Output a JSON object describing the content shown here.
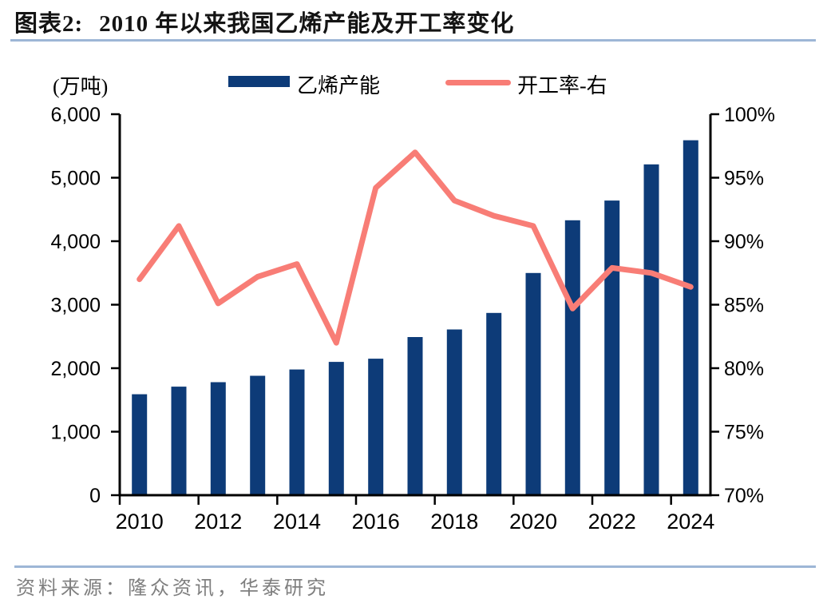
{
  "header": {
    "label": "图表2:",
    "title": "2010 年以来我国乙烯产能及开工率变化"
  },
  "footer": {
    "source": "资料来源：隆众资讯，华泰研究"
  },
  "colors": {
    "bar": "#0d3b78",
    "line": "#f87d76",
    "rule": "#9db6d6",
    "axis": "#000000",
    "source_text": "#7f7f7f",
    "title_text": "#141414"
  },
  "chart_data": {
    "type": "combo",
    "title": "2010 年以来我国乙烯产能及开工率变化",
    "categories": [
      2010,
      2011,
      2012,
      2013,
      2014,
      2015,
      2016,
      2017,
      2018,
      2019,
      2020,
      2021,
      2022,
      2023,
      2024
    ],
    "series": [
      {
        "name": "乙烯产能",
        "type": "bar",
        "axis": "left",
        "values": [
          1590,
          1710,
          1780,
          1880,
          1980,
          2100,
          2150,
          2490,
          2610,
          2870,
          3500,
          4330,
          4640,
          5210,
          5590
        ]
      },
      {
        "name": "开工率-右",
        "type": "line",
        "axis": "right",
        "values": [
          87.0,
          91.2,
          85.1,
          87.2,
          88.2,
          82.0,
          94.2,
          97.0,
          93.2,
          92.0,
          91.2,
          84.7,
          87.9,
          87.5,
          86.4
        ]
      }
    ],
    "left_axis": {
      "unit": "(万吨)",
      "min": 0,
      "max": 6000,
      "tick_step": 1000,
      "tick_labels": [
        "0",
        "1,000",
        "2,000",
        "3,000",
        "4,000",
        "5,000",
        "6,000"
      ]
    },
    "right_axis": {
      "min": 70,
      "max": 100,
      "tick_step": 5,
      "tick_labels": [
        "70%",
        "75%",
        "80%",
        "85%",
        "90%",
        "95%",
        "100%"
      ]
    },
    "x_tick_labels": [
      "2010",
      "2012",
      "2014",
      "2016",
      "2018",
      "2020",
      "2022",
      "2024"
    ],
    "legend_position": "top",
    "grid": false
  }
}
